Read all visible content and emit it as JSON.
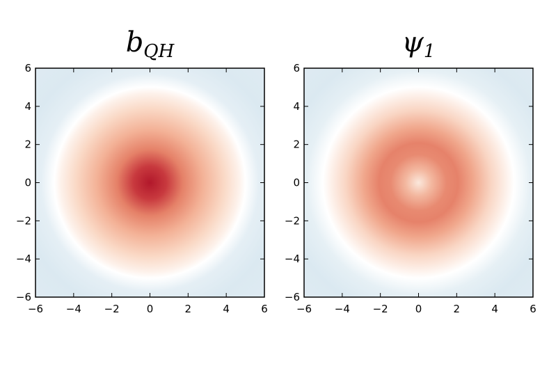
{
  "chart_data": [
    {
      "type": "heatmap",
      "title": "b_QH",
      "title_main": "b",
      "title_sub": "QH",
      "xlim": [
        -6,
        6
      ],
      "ylim": [
        -6,
        6
      ],
      "xticks": [
        "−6",
        "−4",
        "−2",
        "0",
        "2",
        "4",
        "6"
      ],
      "yticks": [
        "6",
        "4",
        "2",
        "0",
        "−2",
        "−4",
        "−6"
      ],
      "colormap": "diverging red-white-blue",
      "field": "radially symmetric Gaussian peak centred at (0, 0), strongest red at centre, fading to white near r ≈ 3.3, faint blue beyond",
      "peak_color": "#b2182b",
      "background_color": "#deebf2"
    },
    {
      "type": "heatmap",
      "title": "ψ_1",
      "title_main": "ψ",
      "title_sub": "1",
      "xlim": [
        -6,
        6
      ],
      "ylim": [
        -6,
        6
      ],
      "xticks": [
        "−6",
        "−4",
        "−2",
        "0",
        "2",
        "4",
        "6"
      ],
      "yticks": [
        "6",
        "4",
        "2",
        "0",
        "−2",
        "−4",
        "−6"
      ],
      "colormap": "diverging red-white-blue",
      "field": "radially symmetric ring (annulus) peaked near r ≈ 1.3, lighter at centre, white near r ≈ 3.3, faint blue beyond",
      "peak_color": "#e0735c",
      "background_color": "#deebf2"
    }
  ]
}
